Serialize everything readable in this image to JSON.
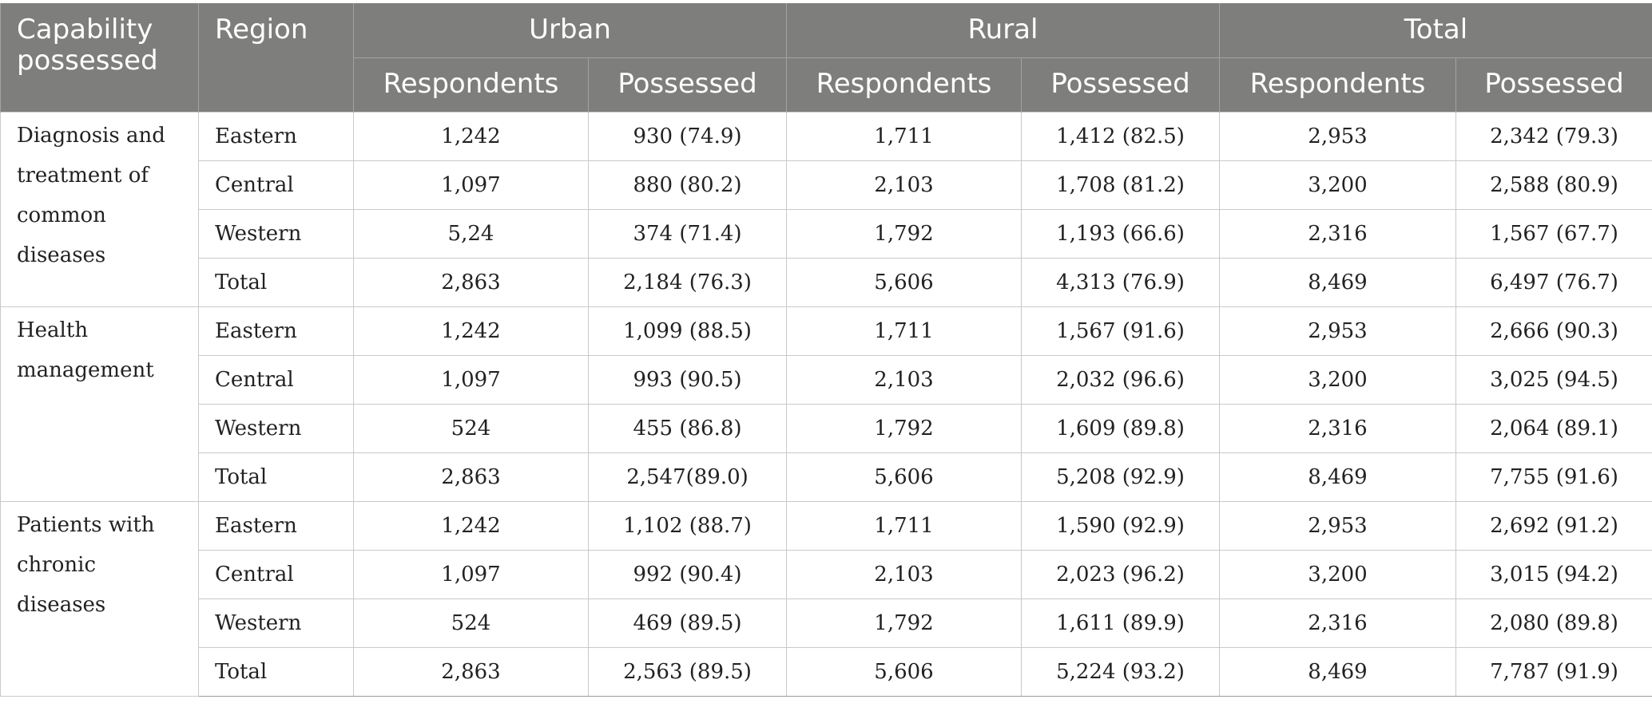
{
  "header": {
    "capability": "Capability possessed",
    "region": "Region",
    "groups": [
      "Urban",
      "Rural",
      "Total"
    ],
    "sub": [
      "Respondents",
      "Possessed"
    ]
  },
  "groups": [
    {
      "capability": "Diagnosis and treatment of common diseases",
      "rows": [
        {
          "region": "Eastern",
          "cells": [
            "1,242",
            "930 (74.9)",
            "1,711",
            "1,412 (82.5)",
            "2,953",
            "2,342 (79.3)"
          ]
        },
        {
          "region": "Central",
          "cells": [
            "1,097",
            "880 (80.2)",
            "2,103",
            "1,708 (81.2)",
            "3,200",
            "2,588 (80.9)"
          ]
        },
        {
          "region": "Western",
          "cells": [
            "5,24",
            "374 (71.4)",
            "1,792",
            "1,193 (66.6)",
            "2,316",
            "1,567 (67.7)"
          ]
        },
        {
          "region": "Total",
          "cells": [
            "2,863",
            "2,184 (76.3)",
            "5,606",
            "4,313 (76.9)",
            "8,469",
            "6,497 (76.7)"
          ]
        }
      ]
    },
    {
      "capability": "Health management",
      "rows": [
        {
          "region": "Eastern",
          "cells": [
            "1,242",
            "1,099 (88.5)",
            "1,711",
            "1,567 (91.6)",
            "2,953",
            "2,666 (90.3)"
          ]
        },
        {
          "region": "Central",
          "cells": [
            "1,097",
            "993 (90.5)",
            "2,103",
            "2,032 (96.6)",
            "3,200",
            "3,025 (94.5)"
          ]
        },
        {
          "region": "Western",
          "cells": [
            "524",
            "455 (86.8)",
            "1,792",
            "1,609 (89.8)",
            "2,316",
            "2,064 (89.1)"
          ]
        },
        {
          "region": "Total",
          "cells": [
            "2,863",
            "2,547(89.0)",
            "5,606",
            "5,208 (92.9)",
            "8,469",
            "7,755 (91.6)"
          ]
        }
      ]
    },
    {
      "capability": "Patients with chronic diseases",
      "rows": [
        {
          "region": "Eastern",
          "cells": [
            "1,242",
            "1,102 (88.7)",
            "1,711",
            "1,590 (92.9)",
            "2,953",
            "2,692 (91.2)"
          ]
        },
        {
          "region": "Central",
          "cells": [
            "1,097",
            "992 (90.4)",
            "2,103",
            "2,023 (96.2)",
            "3,200",
            "3,015 (94.2)"
          ]
        },
        {
          "region": "Western",
          "cells": [
            "524",
            "469 (89.5)",
            "1,792",
            "1,611 (89.9)",
            "2,316",
            "2,080 (89.8)"
          ]
        },
        {
          "region": "Total",
          "cells": [
            "2,863",
            "2,563 (89.5)",
            "5,606",
            "5,224 (93.2)",
            "8,469",
            "7,787 (91.9)"
          ]
        }
      ]
    }
  ]
}
